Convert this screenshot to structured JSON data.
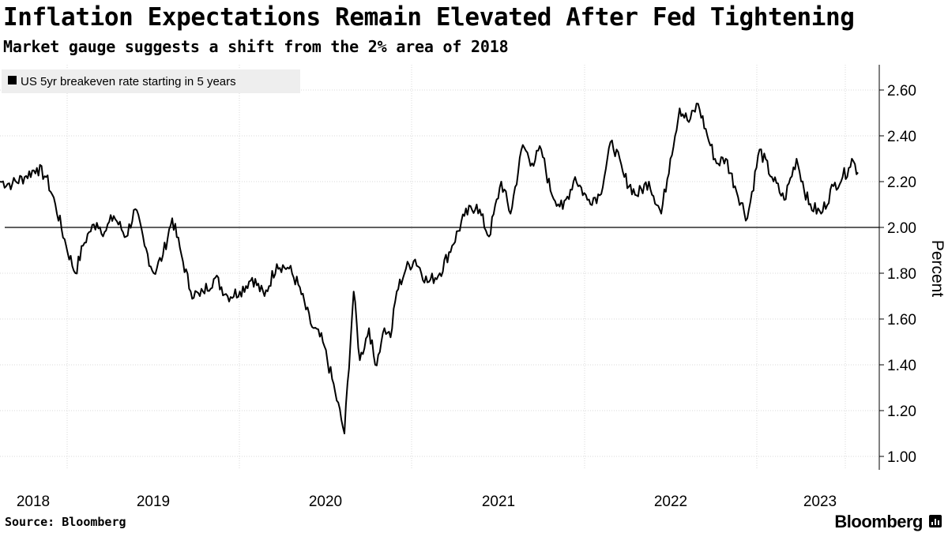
{
  "header": {
    "title": "Inflation Expectations Remain Elevated After Fed Tightening",
    "subtitle": "Market gauge suggests a shift from the 2% area of 2018"
  },
  "footer": {
    "source": "Source: Bloomberg",
    "logo": "Bloomberg"
  },
  "chart_data": {
    "type": "line",
    "title": "Inflation Expectations Remain Elevated After Fed Tightening",
    "subtitle": "Market gauge suggests a shift from the 2% area of 2018",
    "xlabel": "",
    "ylabel": "Percent",
    "ylim": [
      1.0,
      2.6
    ],
    "yticks": [
      "2.60",
      "2.40",
      "2.20",
      "2.00",
      "1.80",
      "1.60",
      "1.40",
      "1.20",
      "1.00"
    ],
    "xticks": [
      "2018",
      "2019",
      "2020",
      "2021",
      "2022",
      "2023"
    ],
    "reference_line": 2.0,
    "grid": "vertical-and-horizontal",
    "legend": {
      "position": "top-left",
      "entries": [
        "US 5yr breakeven rate starting in 5 years"
      ]
    },
    "series": [
      {
        "name": "US 5yr breakeven rate starting in 5 years",
        "color": "#000000",
        "x": [
          2017.7,
          2017.78,
          2017.86,
          2017.94,
          2018.0,
          2018.06,
          2018.13,
          2018.19,
          2018.24,
          2018.28,
          2018.33,
          2018.38,
          2018.44,
          2018.52,
          2018.58,
          2018.64,
          2018.7,
          2018.76,
          2018.82,
          2018.88,
          2018.94,
          2019.0,
          2019.02,
          2019.1,
          2019.18,
          2019.26,
          2019.34,
          2019.42,
          2019.5,
          2019.58,
          2019.64,
          2019.72,
          2019.8,
          2019.88,
          2019.94,
          2020.0,
          2020.04,
          2020.1,
          2020.14,
          2020.18,
          2020.2,
          2020.22,
          2020.24,
          2020.28,
          2020.34,
          2020.4,
          2020.48,
          2020.56,
          2020.64,
          2020.72,
          2020.8,
          2020.88,
          2020.96,
          2021.02,
          2021.1,
          2021.16,
          2021.22,
          2021.28,
          2021.36,
          2021.44,
          2021.52,
          2021.6,
          2021.68,
          2021.76,
          2021.84,
          2021.92,
          2022.0,
          2022.06,
          2022.12,
          2022.18,
          2022.24,
          2022.3,
          2022.36,
          2022.42,
          2022.48,
          2022.56,
          2022.64,
          2022.72,
          2022.8,
          2022.88,
          2022.96,
          2023.04,
          2023.12,
          2023.18,
          2023.22,
          2023.24,
          2023.28
        ],
        "values": [
          2.2,
          2.19,
          2.22,
          2.26,
          2.22,
          2.1,
          1.92,
          1.8,
          1.92,
          1.98,
          2.02,
          1.98,
          2.05,
          1.96,
          2.08,
          1.92,
          1.8,
          1.88,
          2.04,
          1.88,
          1.72,
          1.7,
          1.72,
          1.78,
          1.7,
          1.72,
          1.78,
          1.7,
          1.84,
          1.82,
          1.75,
          1.58,
          1.5,
          1.28,
          1.1,
          1.72,
          1.42,
          1.56,
          1.4,
          1.5,
          1.56,
          1.54,
          1.52,
          1.72,
          1.82,
          1.86,
          1.76,
          1.8,
          1.92,
          2.05,
          2.1,
          1.96,
          2.2,
          2.06,
          2.36,
          2.28,
          2.34,
          2.16,
          2.08,
          2.22,
          2.12,
          2.14,
          2.38,
          2.22,
          2.14,
          2.2,
          2.06,
          2.3,
          2.52,
          2.46,
          2.54,
          2.4,
          2.28,
          2.3,
          2.18,
          2.04,
          2.34,
          2.22,
          2.12,
          2.3,
          2.1,
          2.06,
          2.18,
          2.22,
          2.26,
          2.3,
          2.24
        ]
      }
    ]
  }
}
